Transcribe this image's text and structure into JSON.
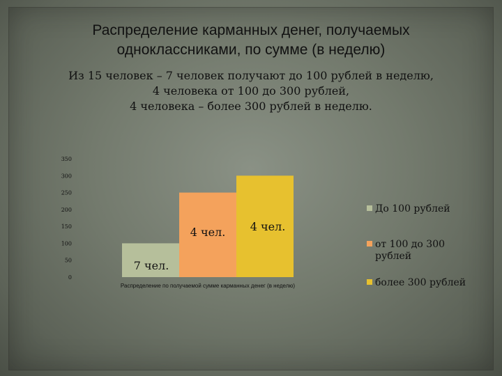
{
  "slide": {
    "title_lines": [
      "Распределение карманных денег, получаемых",
      "одноклассниками, по сумме (в неделю)"
    ],
    "subtitle_lines": [
      "Из 15 человек – 7 человек получают до 100 рублей в неделю,",
      "4 человека от 100 до 300 рублей,",
      "4 человека – более 300 рублей в неделю."
    ]
  },
  "chart_data": {
    "type": "bar",
    "title": "",
    "xlabel": "Распределение по получаемой сумме карманных денег (в неделю)",
    "ylabel": "",
    "ylim": [
      0,
      350
    ],
    "yticks": [
      0,
      50,
      100,
      150,
      200,
      250,
      300,
      350
    ],
    "grid": false,
    "legend_position": "right",
    "series": [
      {
        "name": "До 100 рублей",
        "values": [
          100
        ],
        "color": "#b6bf9b",
        "data_label": "7 чел."
      },
      {
        "name": "от 100 до 300 рублей",
        "values": [
          250
        ],
        "color": "#f4a25c",
        "data_label": "4 чел."
      },
      {
        "name": "более 300 рублей",
        "values": [
          300
        ],
        "color": "#e7c12f",
        "data_label": "4 чел."
      }
    ]
  }
}
